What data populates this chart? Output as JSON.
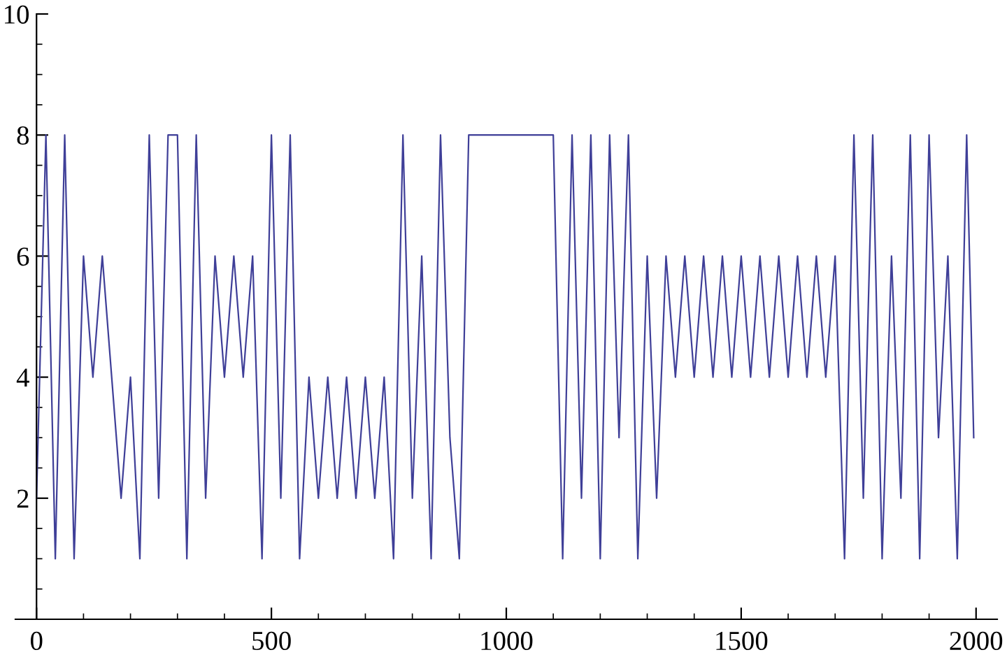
{
  "chart_data": {
    "type": "line",
    "x": [
      0,
      20,
      40,
      60,
      80,
      100,
      120,
      140,
      160,
      180,
      200,
      220,
      240,
      260,
      280,
      300,
      320,
      340,
      360,
      380,
      400,
      420,
      440,
      460,
      480,
      500,
      520,
      540,
      560,
      580,
      600,
      620,
      640,
      660,
      680,
      700,
      720,
      740,
      760,
      780,
      800,
      820,
      840,
      860,
      880,
      900,
      920,
      940,
      960,
      980,
      1000,
      1020,
      1040,
      1060,
      1080,
      1100,
      1120,
      1140,
      1160,
      1180,
      1200,
      1220,
      1240,
      1260,
      1280,
      1300,
      1320,
      1340,
      1360,
      1380,
      1400,
      1420,
      1440,
      1460,
      1480,
      1500,
      1520,
      1540,
      1560,
      1580,
      1600,
      1620,
      1640,
      1660,
      1680,
      1700,
      1720,
      1740,
      1760,
      1780,
      1800,
      1820,
      1840,
      1860,
      1880,
      1900,
      1920,
      1940,
      1960,
      1980,
      1995
    ],
    "series": [
      {
        "color": "#3f3f98",
        "values": [
          2,
          8,
          1,
          8,
          1,
          6,
          4,
          6,
          4,
          2,
          4,
          1,
          8,
          2,
          8,
          8,
          1,
          8,
          2,
          6,
          4,
          6,
          4,
          6,
          1,
          8,
          2,
          8,
          1,
          4,
          2,
          4,
          2,
          4,
          2,
          4,
          2,
          4,
          1,
          8,
          2,
          6,
          1,
          8,
          3,
          1,
          8,
          8,
          8,
          8,
          8,
          8,
          8,
          8,
          8,
          8,
          1,
          8,
          2,
          8,
          1,
          8,
          3,
          8,
          1,
          6,
          2,
          6,
          4,
          6,
          4,
          6,
          4,
          6,
          4,
          6,
          4,
          6,
          4,
          6,
          4,
          6,
          4,
          6,
          4,
          6,
          1,
          8,
          2,
          8,
          1,
          6,
          2,
          8,
          1,
          8,
          3,
          6,
          1,
          8,
          3
        ]
      }
    ],
    "xlim": [
      -45,
      2045
    ],
    "ylim": [
      0,
      10
    ],
    "xticks": [
      0,
      {
        "value": 100,
        "label": null
      },
      {
        "value": 200,
        "label": null
      },
      {
        "value": 300,
        "label": null
      },
      {
        "value": 400,
        "label": null
      },
      500,
      {
        "value": 600,
        "label": null
      },
      {
        "value": 700,
        "label": null
      },
      {
        "value": 800,
        "label": null
      },
      {
        "value": 900,
        "label": null
      },
      1000,
      {
        "value": 1100,
        "label": null
      },
      {
        "value": 1200,
        "label": null
      },
      {
        "value": 1300,
        "label": null
      },
      {
        "value": 1400,
        "label": null
      },
      1500,
      {
        "value": 1600,
        "label": null
      },
      {
        "value": 1700,
        "label": null
      },
      {
        "value": 1800,
        "label": null
      },
      {
        "value": 1900,
        "label": null
      },
      2000
    ],
    "yticks": [
      {
        "value": 0.5,
        "label": null
      },
      {
        "value": 1,
        "label": null
      },
      {
        "value": 1.5,
        "label": null
      },
      2,
      {
        "value": 2.5,
        "label": null
      },
      {
        "value": 3,
        "label": null
      },
      {
        "value": 3.5,
        "label": null
      },
      4,
      {
        "value": 4.5,
        "label": null
      },
      {
        "value": 5,
        "label": null
      },
      {
        "value": 5.5,
        "label": null
      },
      6,
      {
        "value": 6.5,
        "label": null
      },
      {
        "value": 7,
        "label": null
      },
      {
        "value": 7.5,
        "label": null
      },
      8,
      {
        "value": 8.5,
        "label": null
      },
      {
        "value": 9,
        "label": null
      },
      {
        "value": 9.5,
        "label": null
      },
      10
    ],
    "grid": false,
    "legend": false,
    "marker": "none",
    "line_style": "solid"
  }
}
